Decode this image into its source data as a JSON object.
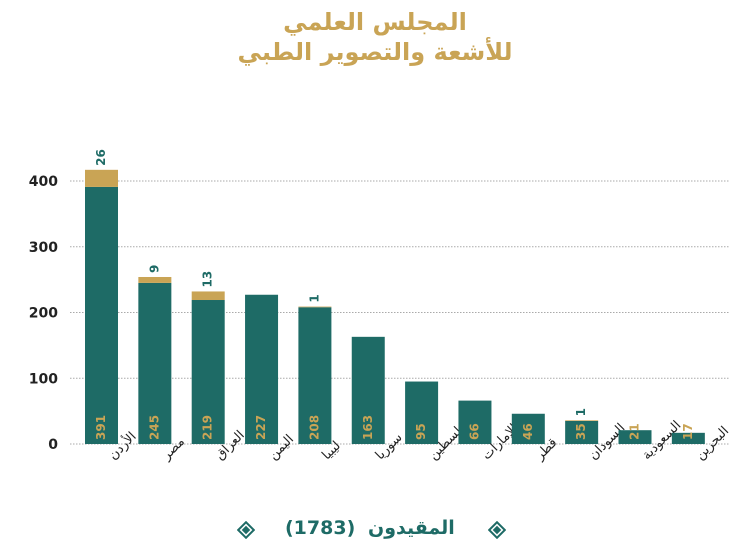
{
  "title_line1": "المجلس العلمي",
  "title_line2": "للأشعة والتصوير الطبي",
  "legend": {
    "label": "المقيدون",
    "total": "(1783)"
  },
  "colors": {
    "main": "#1e6b66",
    "extra": "#c9a455",
    "title": "#c9a455",
    "grid": "#aaaaaa"
  },
  "chart_data": {
    "type": "bar",
    "stacked": true,
    "categories": [
      "الأردن",
      "مصر",
      "العراق",
      "اليمن",
      "ليبيا",
      "سوريا",
      "فلسطين",
      "الإمارات",
      "قطر",
      "السودان",
      "السعودية",
      "البحرين"
    ],
    "series": [
      {
        "values": [
          391,
          245,
          219,
          227,
          208,
          163,
          95,
          66,
          46,
          35,
          21,
          17
        ]
      },
      {
        "values": [
          26,
          9,
          13,
          0,
          1,
          0,
          0,
          0,
          0,
          1,
          0,
          0
        ]
      }
    ],
    "ylim": [
      0,
      400
    ],
    "yticks": [
      0,
      100,
      200,
      300,
      400
    ],
    "grid": true,
    "legend_position": "bottom"
  }
}
